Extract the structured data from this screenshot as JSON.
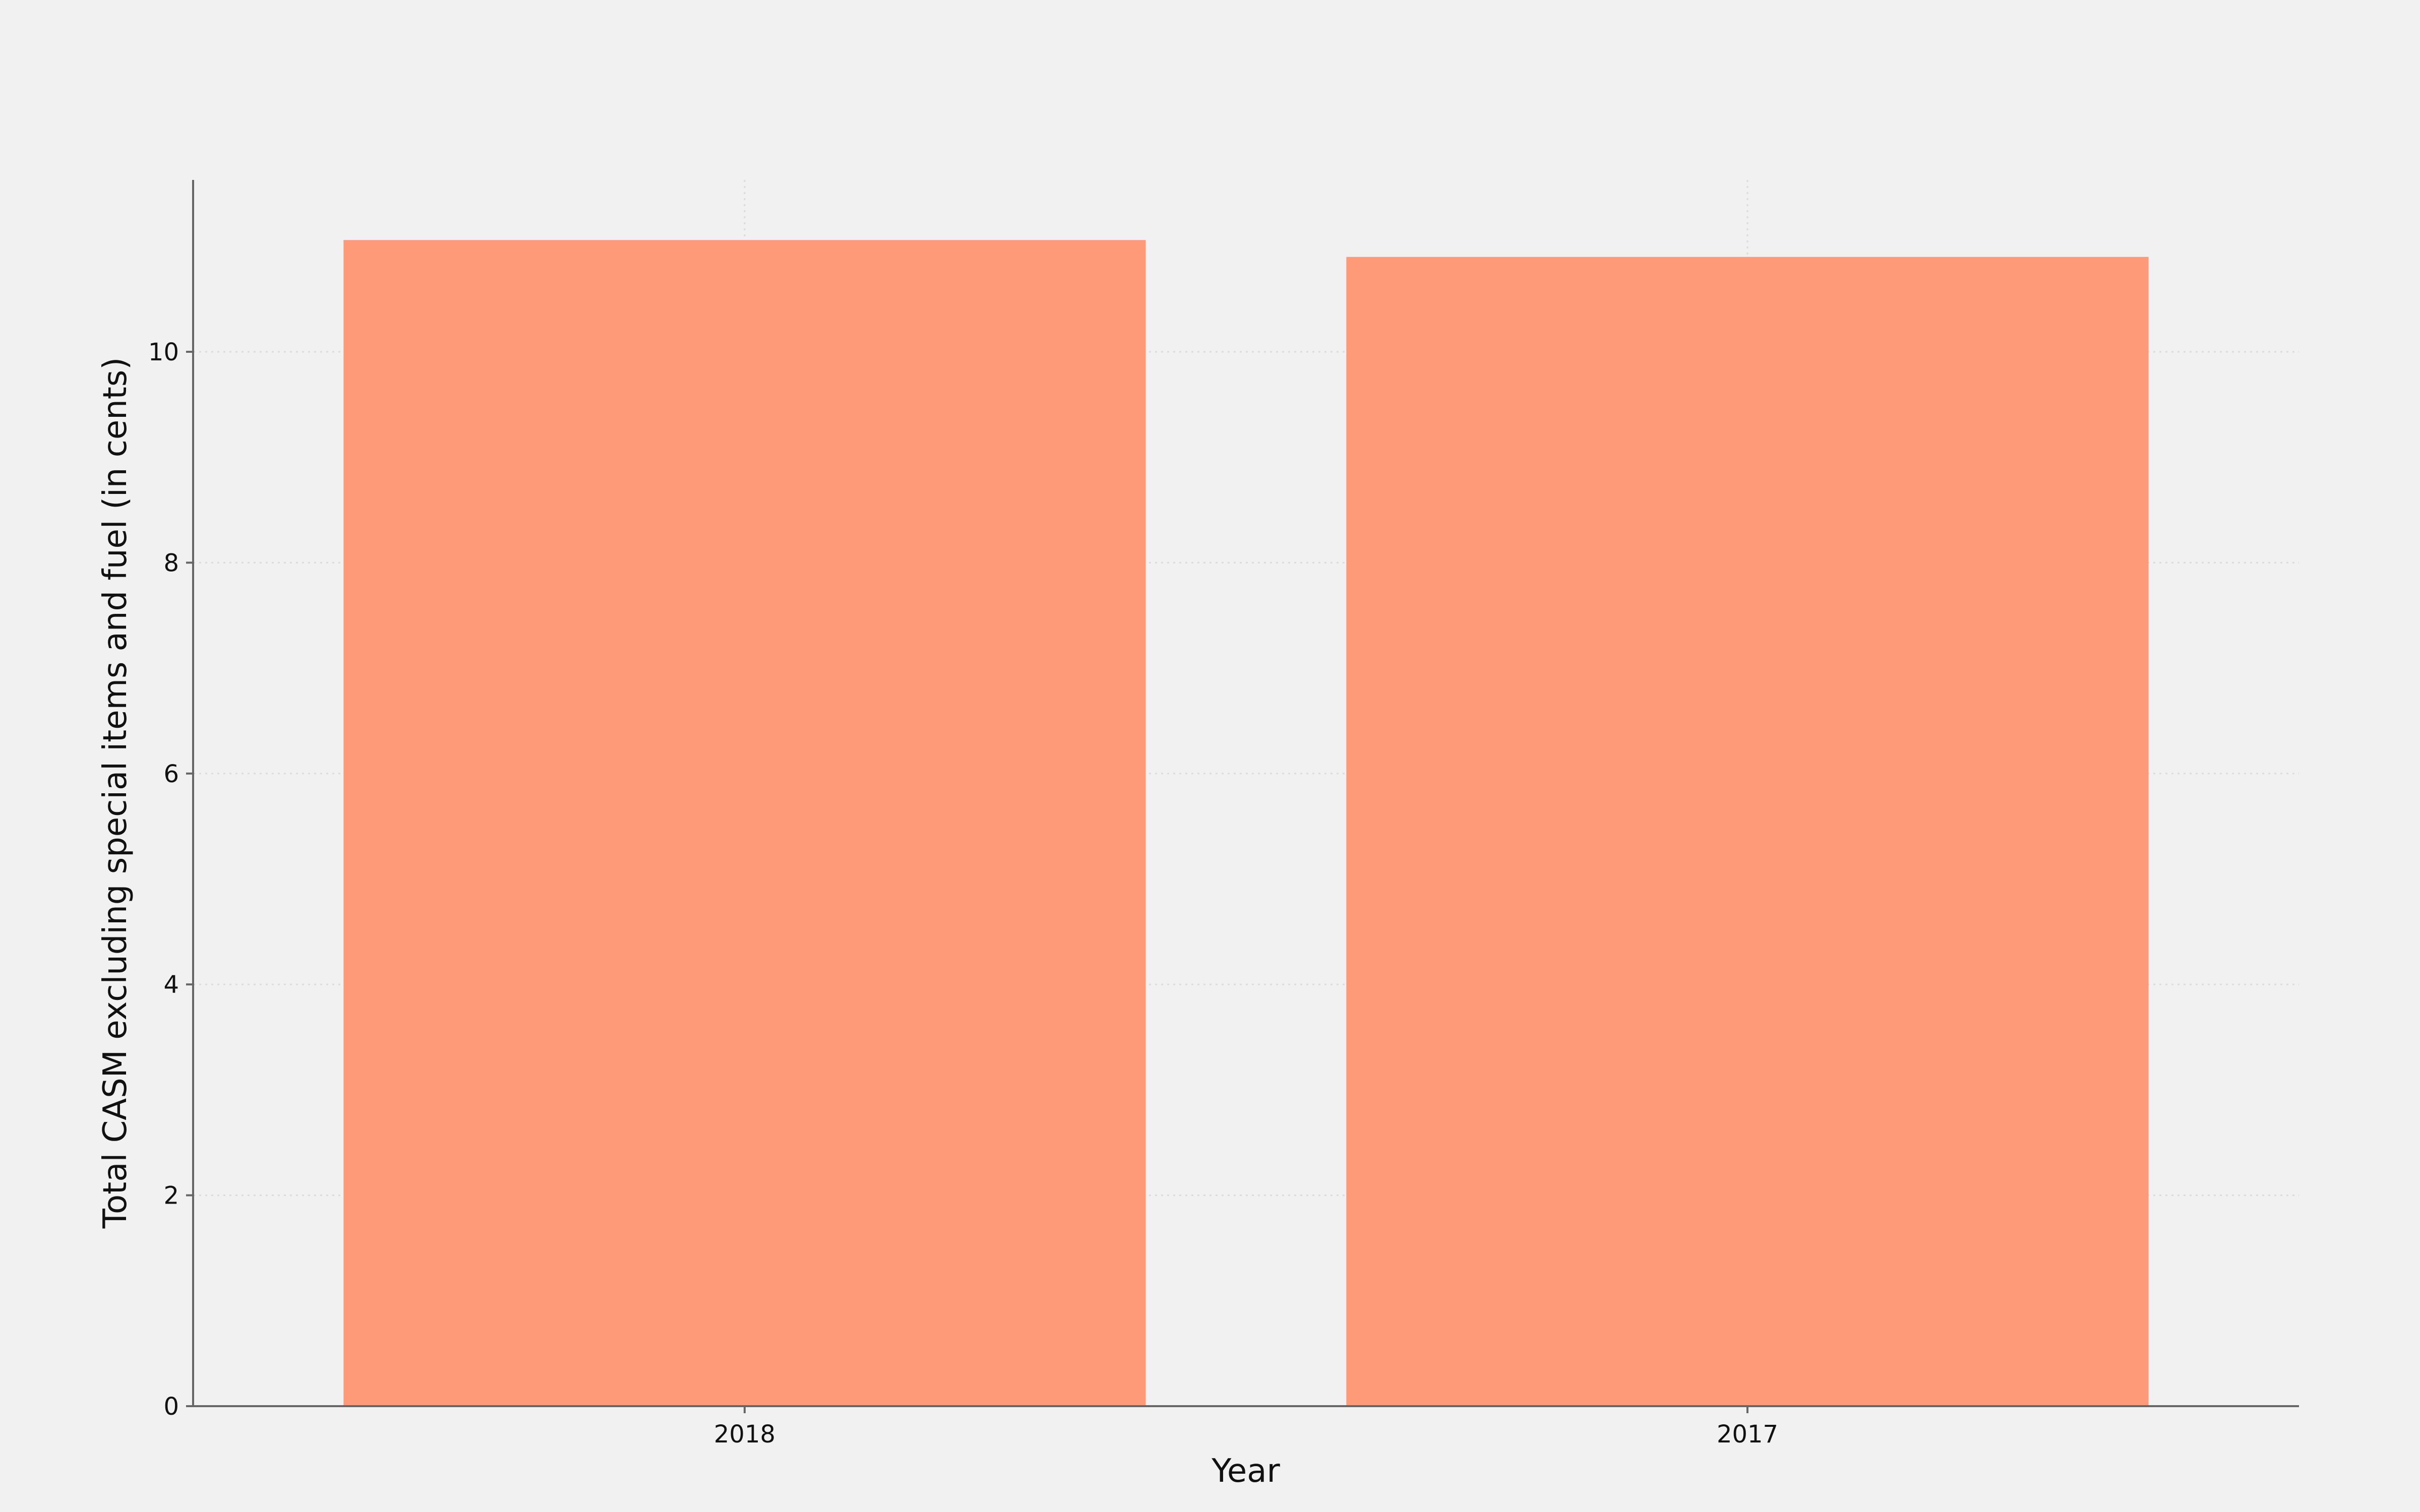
{
  "chart_data": {
    "type": "bar",
    "title": "",
    "xlabel": "Year",
    "ylabel": "Total CASM excluding special items and fuel (in cents)",
    "categories": [
      "2018",
      "2017"
    ],
    "values": [
      11.06,
      10.9
    ],
    "ylim": [
      0,
      11.63
    ],
    "yticks": [
      0,
      2,
      4,
      6,
      8,
      10
    ],
    "ytick_labels": [
      "0",
      "2",
      "4",
      "6",
      "8",
      "10"
    ],
    "grid": true,
    "grid_style": "dotted",
    "legend": "none",
    "colors": {
      "bar": "#ff9a78",
      "background": "#f1f1f1",
      "axis": "#666666",
      "grid": "#dcdcdc",
      "text": "#111111"
    }
  }
}
